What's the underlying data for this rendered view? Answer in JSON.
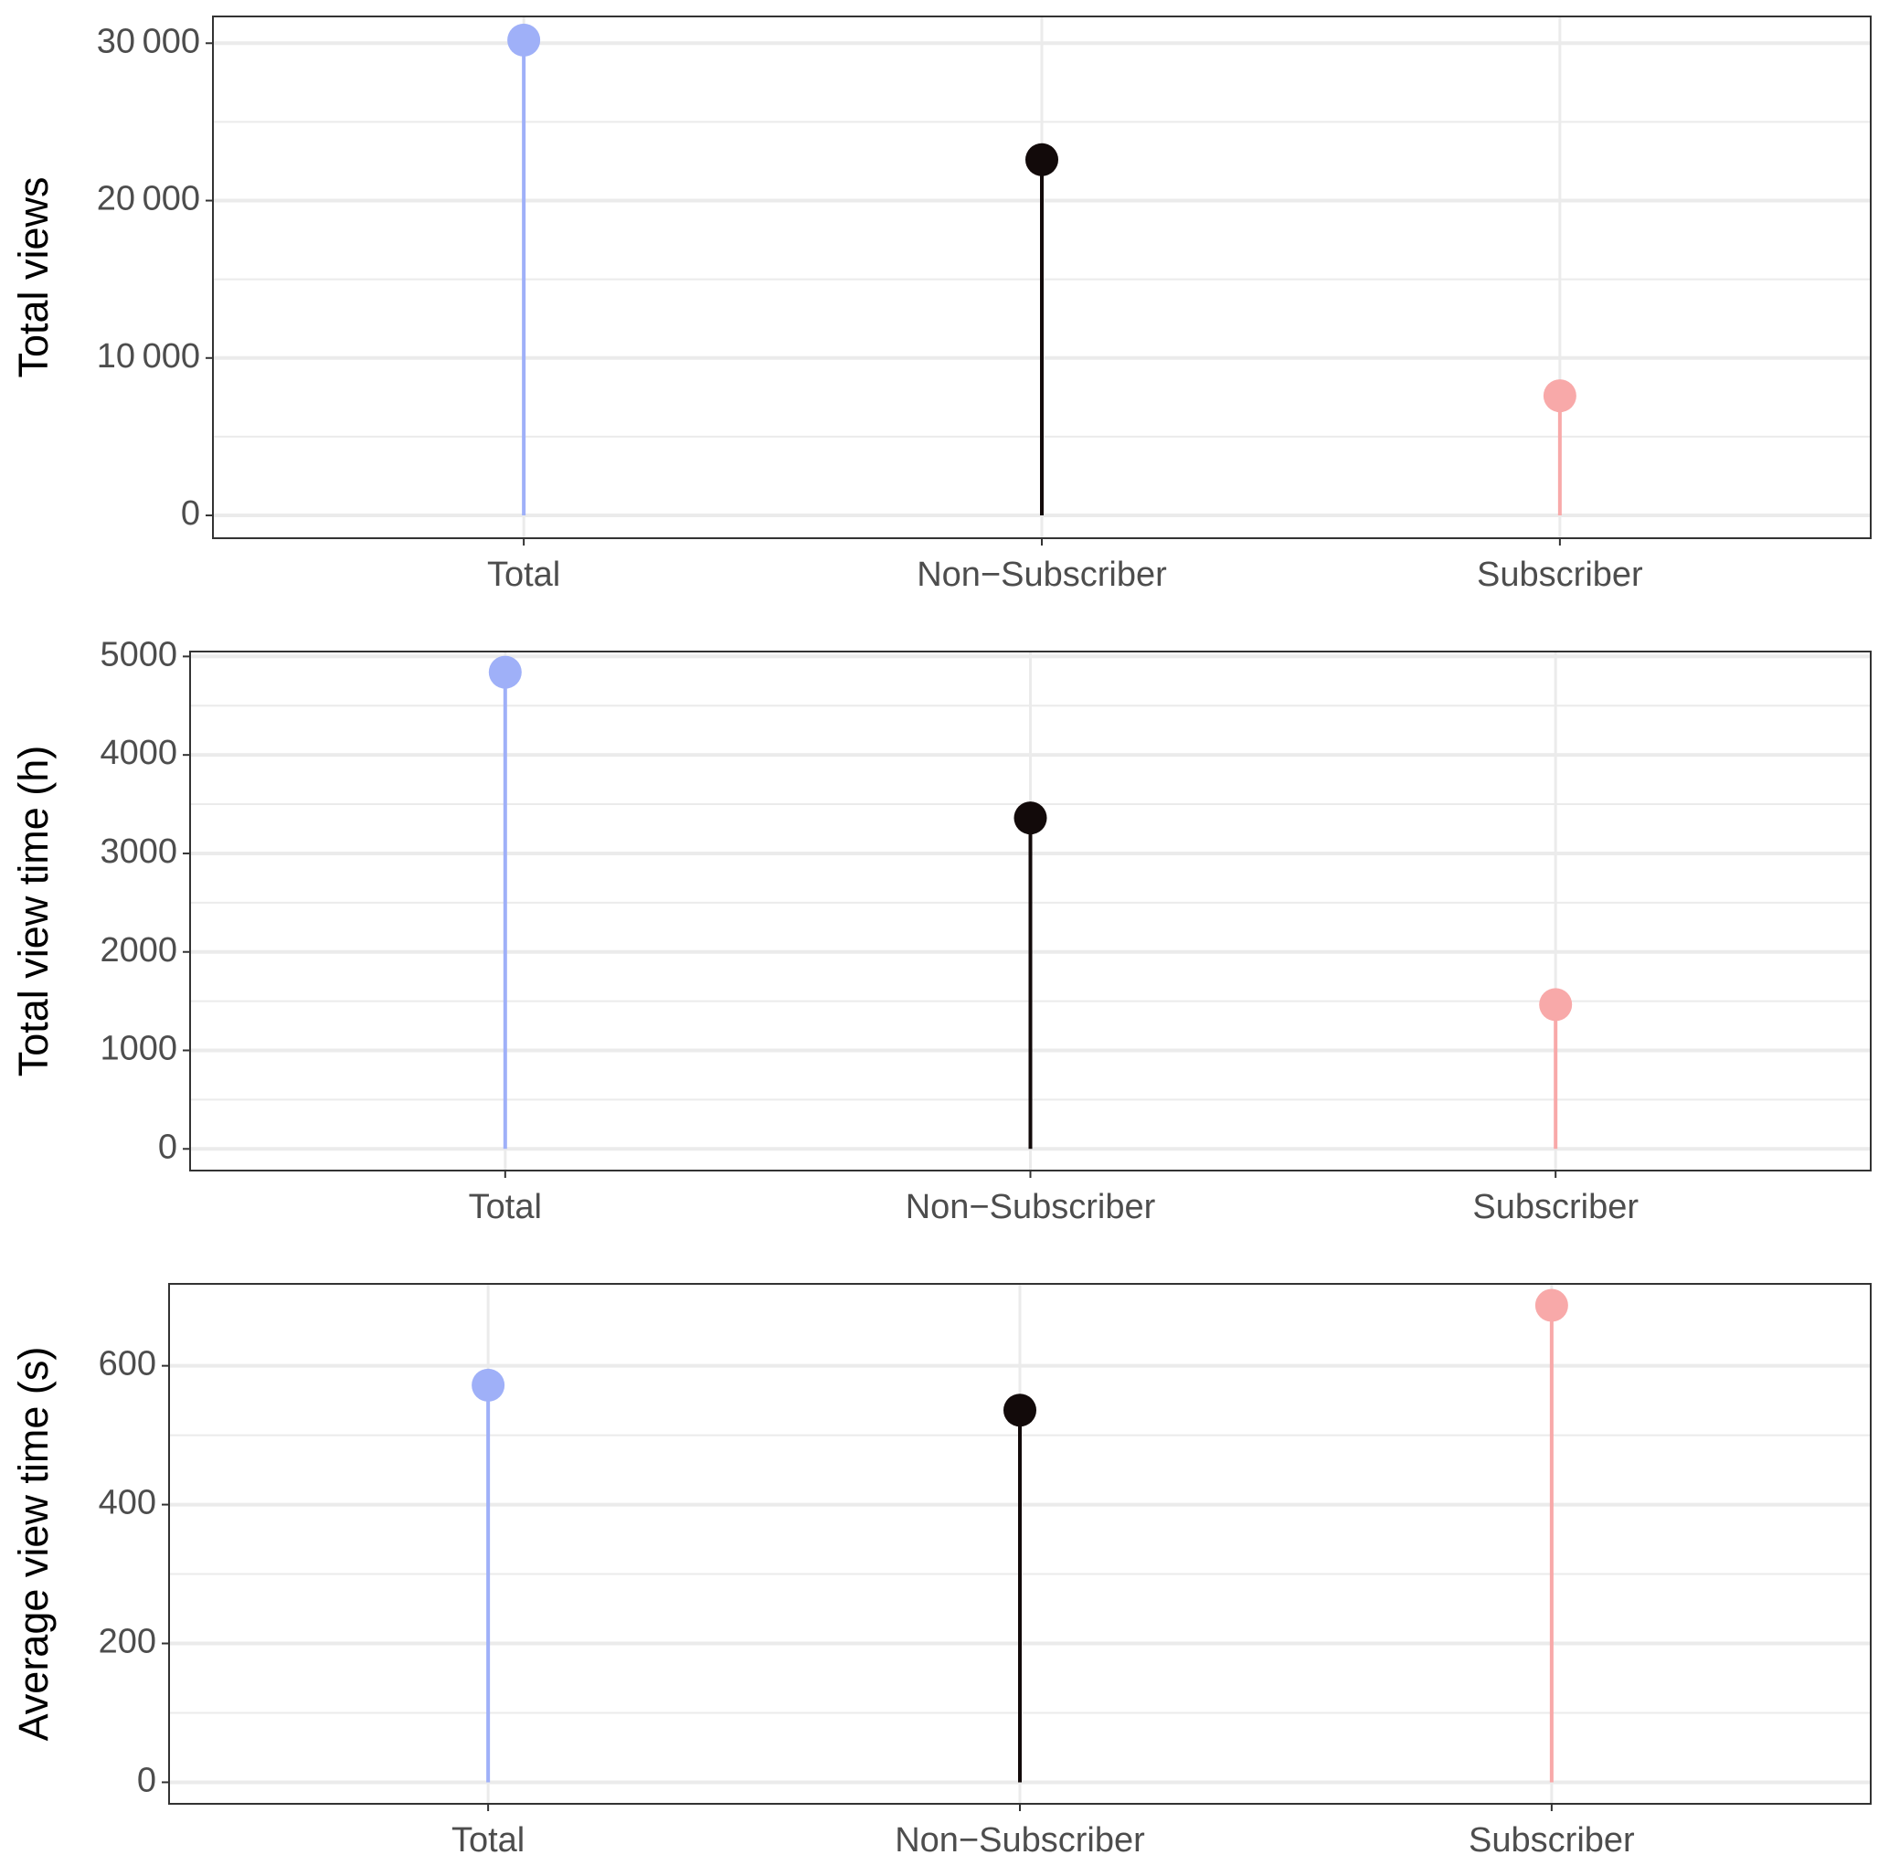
{
  "chart_data": [
    {
      "type": "lollipop",
      "ylabel": "Total views",
      "categories": [
        "Total",
        "Non−Subscriber",
        "Subscriber"
      ],
      "values": [
        30200,
        22600,
        7600
      ],
      "colors": [
        "#9fb0f8",
        "#120a0a",
        "#f8a9a9"
      ],
      "ylim": [
        -1450,
        31700
      ],
      "yticks": [
        0,
        {
          "value": 10000,
          "label": "10 000"
        },
        {
          "value": 20000,
          "label": "20 000"
        },
        {
          "value": 30000,
          "label": "30 000"
        }
      ],
      "grid": true
    },
    {
      "type": "lollipop",
      "ylabel": "Total view time (h)",
      "categories": [
        "Total",
        "Non−Subscriber",
        "Subscriber"
      ],
      "values": [
        4840,
        3360,
        1465
      ],
      "colors": [
        "#9fb0f8",
        "#120a0a",
        "#f8a9a9"
      ],
      "ylim": [
        -220,
        5050
      ],
      "yticks": [
        0,
        1000,
        2000,
        3000,
        4000,
        5000
      ],
      "grid": true
    },
    {
      "type": "lollipop",
      "ylabel": "Average view time (s)",
      "categories": [
        "Total",
        "Non−Subscriber",
        "Subscriber"
      ],
      "values": [
        572,
        536,
        687
      ],
      "colors": [
        "#9fb0f8",
        "#120a0a",
        "#f8a9a9"
      ],
      "ylim": [
        -31,
        718
      ],
      "yticks": [
        0,
        200,
        400,
        600
      ],
      "grid": true
    }
  ]
}
